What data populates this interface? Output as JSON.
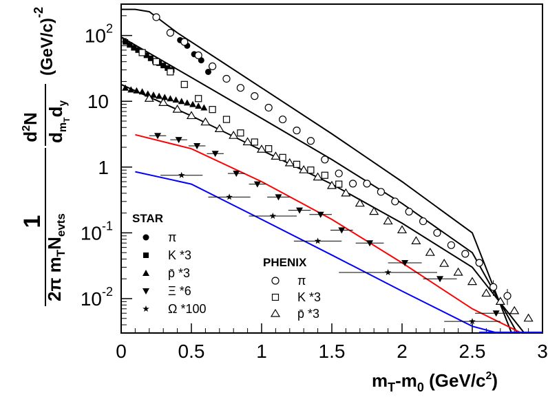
{
  "chart_data": {
    "type": "scatter",
    "xlabel": "m_T-m_0 (GeV/c^2)",
    "ylabel": "1/(2π m_T N_evts) d²N/(d_{m_T} d_y) (GeV/c)^-2",
    "x_ticks": [
      "0",
      "0.5",
      "1",
      "1.5",
      "2",
      "2.5",
      "3"
    ],
    "y_ticks": [
      "10^-2",
      "10^-1",
      "1",
      "10",
      "10^2"
    ],
    "xlim": [
      0,
      3
    ],
    "ylim": [
      0.003,
      300
    ],
    "y_scale": "log",
    "legends": {
      "star": {
        "title": "STAR",
        "entries": [
          "π",
          "K *3",
          "p̄ *3",
          "Ξ *6",
          "Ω *100"
        ]
      },
      "phenix": {
        "title": "PHENIX",
        "entries": [
          "π",
          "K *3",
          "p̄ *3"
        ]
      }
    },
    "series": [
      {
        "name": "π",
        "group": "STAR",
        "marker": "filled-circle",
        "x": [
          0.42,
          0.47,
          0.52,
          0.57,
          0.62
        ],
        "y": [
          85,
          70,
          52,
          42,
          28
        ]
      },
      {
        "name": "K *3",
        "group": "STAR",
        "marker": "filled-square",
        "x": [
          0.03,
          0.06,
          0.09,
          0.12,
          0.15,
          0.18,
          0.21,
          0.24,
          0.27,
          0.3,
          0.33,
          0.36
        ],
        "y": [
          80,
          72,
          65,
          60,
          55,
          50,
          45,
          41,
          38,
          35,
          32,
          30
        ]
      },
      {
        "name": "p̄ *3",
        "group": "STAR",
        "marker": "filled-triangle-up",
        "x": [
          0.03,
          0.07,
          0.11,
          0.15,
          0.19,
          0.23,
          0.27,
          0.31,
          0.35,
          0.39,
          0.43,
          0.47,
          0.51,
          0.55,
          0.59
        ],
        "y": [
          16,
          15,
          14.5,
          14,
          13,
          12.5,
          12,
          11.5,
          11,
          10.5,
          10,
          9.5,
          9,
          8.5,
          8
        ]
      },
      {
        "name": "Ξ *6",
        "group": "STAR",
        "marker": "filled-triangle-down",
        "x": [
          0.26,
          0.41,
          0.54,
          0.67,
          0.82,
          0.97,
          1.12,
          1.27,
          1.42,
          1.57,
          1.77,
          2.02,
          2.27,
          2.67
        ],
        "y": [
          3.0,
          2.6,
          2.1,
          1.6,
          0.8,
          0.55,
          0.35,
          0.22,
          0.19,
          0.11,
          0.07,
          0.035,
          0.02,
          0.006
        ],
        "xerr": [
          0.06,
          0.06,
          0.06,
          0.06,
          0.06,
          0.06,
          0.08,
          0.08,
          0.08,
          0.08,
          0.1,
          0.12,
          0.12,
          0.15
        ]
      },
      {
        "name": "Ω *100",
        "group": "STAR",
        "marker": "filled-star",
        "x": [
          0.43,
          0.77,
          1.08,
          1.4,
          1.9,
          2.5
        ],
        "y": [
          0.75,
          0.35,
          0.18,
          0.075,
          0.025,
          0.0045
        ],
        "xerr": [
          0.15,
          0.15,
          0.17,
          0.17,
          0.35,
          0.2
        ]
      },
      {
        "name": "π",
        "group": "PHENIX",
        "marker": "open-circle",
        "x": [
          0.25,
          0.35,
          0.45,
          0.55,
          0.65,
          0.75,
          0.85,
          0.95,
          1.05,
          1.15,
          1.25,
          1.35,
          1.45,
          1.55,
          1.65,
          1.75,
          1.85,
          1.95,
          2.05,
          2.15,
          2.25,
          2.35,
          2.45,
          2.55,
          2.65,
          2.75
        ],
        "y": [
          190,
          110,
          80,
          50,
          34,
          22,
          16,
          12,
          8.0,
          5.3,
          3.6,
          2.5,
          1.3,
          0.8,
          0.56,
          0.56,
          0.42,
          0.3,
          0.21,
          0.15,
          0.1,
          0.065,
          0.048,
          0.035,
          0.015,
          0.011
        ],
        "yerr": [
          0,
          0,
          0,
          0,
          0,
          0,
          0,
          0,
          0,
          0,
          0,
          0,
          0,
          0,
          0,
          0,
          0,
          0,
          0,
          0,
          0,
          0,
          0,
          0,
          0.004,
          0.003
        ]
      },
      {
        "name": "K *3",
        "group": "PHENIX",
        "marker": "open-square",
        "x": [
          0.15,
          0.25,
          0.35,
          0.45,
          0.55,
          0.65,
          0.75,
          0.85,
          0.95,
          1.05,
          1.15,
          1.25,
          1.35,
          1.45,
          1.55
        ],
        "y": [
          55,
          40,
          28,
          18,
          11,
          7.5,
          5.3,
          3.3,
          2.4,
          1.9,
          1.4,
          1.1,
          0.9,
          0.75,
          0.55
        ]
      },
      {
        "name": "p̄ *3",
        "group": "PHENIX",
        "marker": "open-triangle-up",
        "x": [
          0.2,
          0.3,
          0.4,
          0.5,
          0.6,
          0.7,
          0.8,
          0.9,
          1.0,
          1.1,
          1.2,
          1.3,
          1.4,
          1.5,
          1.6,
          1.7,
          1.8,
          1.9,
          2.0,
          2.1,
          2.2,
          2.3,
          2.4,
          2.5,
          2.6,
          2.7,
          2.8,
          2.9
        ],
        "y": [
          11,
          9.5,
          7.5,
          6.0,
          4.8,
          3.8,
          3.0,
          2.4,
          1.85,
          1.45,
          1.15,
          0.9,
          0.7,
          0.52,
          0.4,
          0.28,
          0.21,
          0.15,
          0.11,
          0.075,
          0.05,
          0.034,
          0.025,
          0.018,
          0.012,
          0.009,
          0.0065,
          0.005
        ]
      }
    ],
    "curves": [
      {
        "color": "#000000",
        "x": [
          0,
          0.1,
          0.2,
          0.4,
          0.7,
          1.0,
          1.5,
          2.0,
          2.5,
          2.78
        ],
        "y": [
          250,
          250,
          230,
          110,
          42,
          16,
          3.2,
          0.6,
          0.1,
          0.003
        ]
      },
      {
        "color": "#000000",
        "x": [
          0,
          0.5,
          1.0,
          1.5,
          2.0,
          2.5,
          2.82
        ],
        "y": [
          95,
          23,
          5.5,
          1.3,
          0.28,
          0.05,
          0.003
        ]
      },
      {
        "color": "#000000",
        "x": [
          0,
          0.5,
          1.0,
          1.5,
          2.0,
          2.5,
          2.87
        ],
        "y": [
          18,
          6.0,
          1.8,
          0.55,
          0.14,
          0.03,
          0.003
        ]
      },
      {
        "color": "#ff0000",
        "x": [
          0.1,
          0.5,
          1.0,
          1.5,
          2.0,
          2.5,
          2.85
        ],
        "y": [
          3.1,
          1.9,
          0.6,
          0.16,
          0.035,
          0.007,
          0.003
        ]
      },
      {
        "color": "#0000ff",
        "x": [
          0.1,
          0.5,
          1.0,
          1.5,
          2.0,
          2.5,
          2.68
        ],
        "y": [
          0.85,
          0.55,
          0.16,
          0.046,
          0.013,
          0.0038,
          0.003
        ]
      }
    ]
  }
}
